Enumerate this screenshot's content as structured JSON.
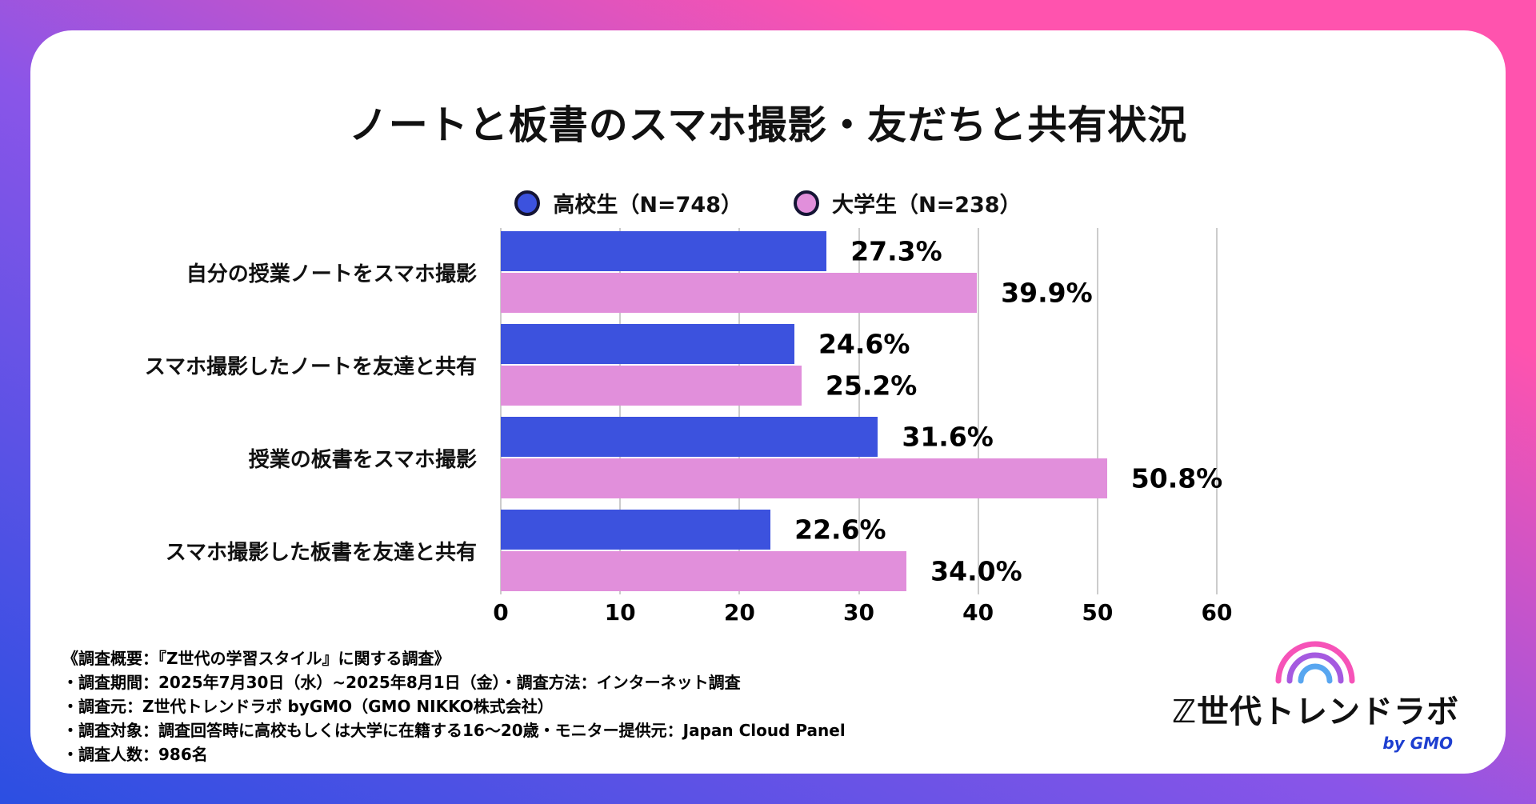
{
  "title": "ノートと板書のスマホ撮影・友だちと共有状況",
  "legend": [
    {
      "label": "高校生（N=748）",
      "color": "#3c52de"
    },
    {
      "label": "大学生（N=238）",
      "color": "#e18fdb"
    }
  ],
  "chart_data": {
    "type": "bar",
    "orientation": "horizontal",
    "title": "ノートと板書のスマホ撮影・友だちと共有状況",
    "categories": [
      "自分の授業ノートをスマホ撮影",
      "スマホ撮影したノートを友達と共有",
      "授業の板書をスマホ撮影",
      "スマホ撮影した板書を友達と共有"
    ],
    "series": [
      {
        "name": "高校生（N=748）",
        "color": "#3c52de",
        "values": [
          27.3,
          24.6,
          31.6,
          22.6
        ]
      },
      {
        "name": "大学生（N=238）",
        "color": "#e18fdb",
        "values": [
          39.9,
          25.2,
          50.8,
          34.0
        ]
      }
    ],
    "value_labels": [
      [
        "27.3%",
        "39.9%"
      ],
      [
        "24.6%",
        "25.2%"
      ],
      [
        "31.6%",
        "50.8%"
      ],
      [
        "22.6%",
        "34.0%"
      ]
    ],
    "xlim": [
      0,
      60
    ],
    "x_ticks": [
      "0",
      "10",
      "20",
      "30",
      "40",
      "50",
      "60"
    ],
    "grid": true,
    "legend_position": "top",
    "gridline_color": "#cccccc"
  },
  "footer": {
    "lines": [
      "《調査概要：『Z世代の学習スタイル』に関する調査》",
      "・調査期間：2025年7月30日（水）~2025年8月1日（金）・調査方法：インターネット調査",
      "・調査元：Z世代トレンドラボ byGMO（GMO NIKKO株式会社）",
      "・調査対象：調査回答時に高校もしくは大学に在籍する16～20歳・モニター提供元：Japan Cloud Panel",
      "・調査人数：986名"
    ]
  },
  "logo": {
    "text": "ℤ世代トレンドラボ",
    "byline": "by GMO"
  }
}
